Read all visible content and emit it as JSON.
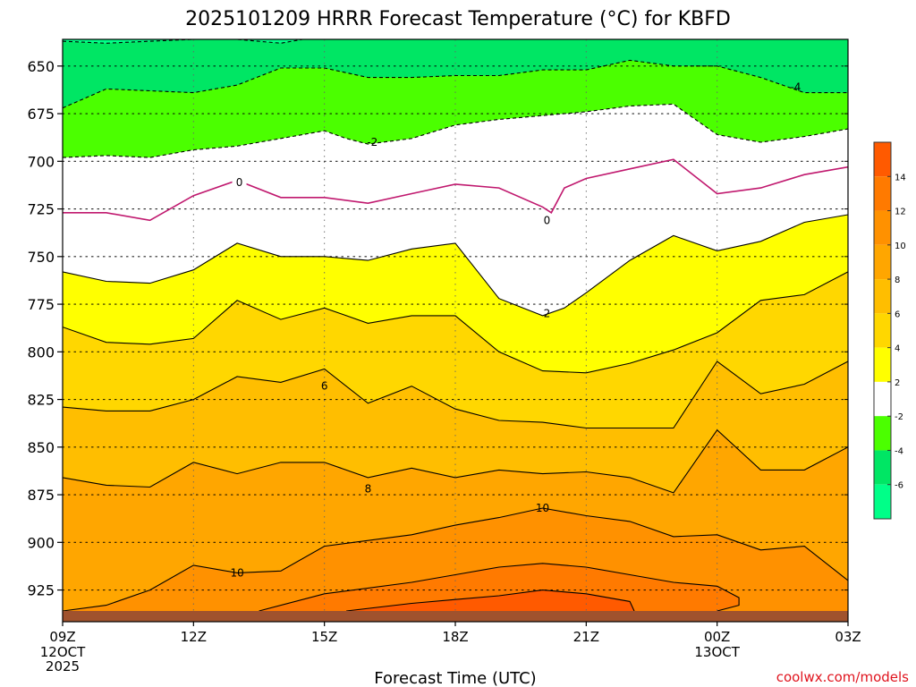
{
  "chart_data": {
    "type": "heatmap",
    "title": "2025101209 HRRR Forecast Temperature (°C) for KBFD",
    "xlabel": "Forecast Time (UTC)",
    "credit": "coolwx.com/models",
    "x_ticks": [
      "09Z",
      "12Z",
      "15Z",
      "18Z",
      "21Z",
      "00Z",
      "03Z"
    ],
    "x_tick_values": [
      0,
      3,
      6,
      9,
      12,
      15,
      18
    ],
    "x_date_labels": [
      {
        "at": 0,
        "lines": [
          "12OCT",
          "2025"
        ]
      },
      {
        "at": 15,
        "lines": [
          "13OCT"
        ]
      }
    ],
    "y_ticks": [
      650,
      675,
      700,
      725,
      750,
      775,
      800,
      825,
      850,
      875,
      900,
      925
    ],
    "ylim": [
      936,
      636
    ],
    "xlim": [
      0,
      18
    ],
    "y_unit": "hPa",
    "surface_pressure": 936,
    "grid": true,
    "colorbar": {
      "position": "right",
      "labels": [
        "14",
        "12",
        "10",
        "8",
        "6",
        "4",
        "2",
        "-2",
        "-4",
        "-6"
      ],
      "bands": [
        {
          "range": "14 to 16",
          "color": "#ff5a00"
        },
        {
          "range": "12 to 14",
          "color": "#ff7a00"
        },
        {
          "range": "10 to 12",
          "color": "#ff9100"
        },
        {
          "range": "8 to 10",
          "color": "#ffa600"
        },
        {
          "range": "6 to 8",
          "color": "#ffbe00"
        },
        {
          "range": "4 to 6",
          "color": "#ffd700"
        },
        {
          "range": "2 to 4",
          "color": "#ffff00"
        },
        {
          "range": "-2 to 2",
          "color": "#ffffff"
        },
        {
          "range": "-4 to -2",
          "color": "#4bff00"
        },
        {
          "range": "-6 to -4",
          "color": "#00e664"
        },
        {
          "range": "-8 to -6",
          "color": "#00ff88"
        }
      ]
    },
    "surface_color": "#a0522d",
    "isotherms": [
      {
        "level": -6,
        "color": "#000000",
        "dashed": true,
        "points": [
          [
            0,
            637
          ],
          [
            1,
            638
          ],
          [
            2,
            637
          ],
          [
            3,
            636
          ],
          [
            4,
            636
          ],
          [
            5,
            638
          ],
          [
            5.5,
            636
          ],
          [
            7,
            636
          ],
          [
            10,
            636
          ],
          [
            13,
            636
          ],
          [
            15,
            636
          ],
          [
            17,
            636
          ],
          [
            18,
            636
          ]
        ]
      },
      {
        "level": -4,
        "color": "#000000",
        "dashed": true,
        "label": {
          "text": "-4",
          "at": [
            16.8,
            661
          ]
        },
        "points": [
          [
            0,
            672
          ],
          [
            1,
            662
          ],
          [
            2,
            663
          ],
          [
            3,
            664
          ],
          [
            4,
            660
          ],
          [
            5,
            651
          ],
          [
            6,
            651
          ],
          [
            7,
            656
          ],
          [
            8,
            656
          ],
          [
            9,
            655
          ],
          [
            10,
            655
          ],
          [
            11,
            652
          ],
          [
            12,
            652
          ],
          [
            13,
            647
          ],
          [
            14,
            650
          ],
          [
            15,
            650
          ],
          [
            16,
            656
          ],
          [
            17,
            664
          ],
          [
            18,
            664
          ]
        ]
      },
      {
        "level": -2,
        "color": "#000000",
        "dashed": true,
        "label": {
          "text": "-2",
          "at": [
            7.1,
            690
          ]
        },
        "points": [
          [
            0,
            698
          ],
          [
            1,
            697
          ],
          [
            2,
            698
          ],
          [
            3,
            694
          ],
          [
            4,
            692
          ],
          [
            5,
            688
          ],
          [
            6,
            684
          ],
          [
            6.5,
            688
          ],
          [
            7,
            691
          ],
          [
            8,
            688
          ],
          [
            9,
            681
          ],
          [
            10,
            678
          ],
          [
            11,
            676
          ],
          [
            12,
            674
          ],
          [
            13,
            671
          ],
          [
            14,
            670
          ],
          [
            15,
            686
          ],
          [
            16,
            690
          ],
          [
            17,
            687
          ],
          [
            18,
            683
          ]
        ]
      },
      {
        "level": 0,
        "color": "#c0186e",
        "dashed": false,
        "label": {
          "text": "0",
          "at": [
            4.05,
            711
          ]
        },
        "points": [
          [
            0,
            727
          ],
          [
            1,
            727
          ],
          [
            2,
            731
          ],
          [
            3,
            718
          ],
          [
            4,
            710
          ],
          [
            5,
            719
          ],
          [
            6,
            719
          ],
          [
            7,
            722
          ],
          [
            8,
            717
          ],
          [
            9,
            712
          ],
          [
            10,
            714
          ],
          [
            11,
            724
          ],
          [
            11.2,
            727
          ],
          [
            11.5,
            714
          ],
          [
            12,
            709
          ],
          [
            13,
            704
          ],
          [
            14,
            699
          ],
          [
            15,
            717
          ],
          [
            16,
            714
          ],
          [
            17,
            707
          ],
          [
            18,
            703
          ]
        ],
        "label2": {
          "text": "0",
          "at": [
            11.1,
            731
          ]
        }
      },
      {
        "level": 2,
        "color": "#000000",
        "dashed": false,
        "label": {
          "text": "2",
          "at": [
            11.1,
            780
          ]
        },
        "points": [
          [
            0,
            758
          ],
          [
            1,
            763
          ],
          [
            2,
            764
          ],
          [
            3,
            757
          ],
          [
            4,
            743
          ],
          [
            5,
            750
          ],
          [
            6,
            750
          ],
          [
            7,
            752
          ],
          [
            8,
            746
          ],
          [
            9,
            743
          ],
          [
            10,
            772
          ],
          [
            11,
            781
          ],
          [
            11.5,
            777
          ],
          [
            12,
            769
          ],
          [
            13,
            752
          ],
          [
            14,
            739
          ],
          [
            15,
            747
          ],
          [
            16,
            742
          ],
          [
            17,
            732
          ],
          [
            18,
            728
          ]
        ]
      },
      {
        "level": 4,
        "color": "#000000",
        "dashed": false,
        "points": [
          [
            0,
            787
          ],
          [
            1,
            795
          ],
          [
            2,
            796
          ],
          [
            3,
            793
          ],
          [
            4,
            773
          ],
          [
            5,
            783
          ],
          [
            6,
            777
          ],
          [
            7,
            785
          ],
          [
            8,
            781
          ],
          [
            9,
            781
          ],
          [
            10,
            800
          ],
          [
            11,
            810
          ],
          [
            12,
            811
          ],
          [
            13,
            806
          ],
          [
            14,
            799
          ],
          [
            15,
            790
          ],
          [
            16,
            773
          ],
          [
            17,
            770
          ],
          [
            18,
            758
          ]
        ]
      },
      {
        "level": 6,
        "color": "#000000",
        "dashed": false,
        "label": {
          "text": "6",
          "at": [
            6.0,
            818
          ]
        },
        "points": [
          [
            0,
            829
          ],
          [
            1,
            831
          ],
          [
            2,
            831
          ],
          [
            3,
            825
          ],
          [
            4,
            813
          ],
          [
            5,
            816
          ],
          [
            6,
            809
          ],
          [
            7,
            827
          ],
          [
            8,
            818
          ],
          [
            9,
            830
          ],
          [
            10,
            836
          ],
          [
            11,
            837
          ],
          [
            12,
            840
          ],
          [
            13,
            840
          ],
          [
            14,
            840
          ],
          [
            15,
            805
          ],
          [
            16,
            822
          ],
          [
            17,
            817
          ],
          [
            18,
            805
          ]
        ]
      },
      {
        "level": 8,
        "color": "#000000",
        "dashed": false,
        "label": {
          "text": "8",
          "at": [
            7.0,
            872
          ]
        },
        "points": [
          [
            0,
            866
          ],
          [
            1,
            870
          ],
          [
            2,
            871
          ],
          [
            3,
            858
          ],
          [
            4,
            864
          ],
          [
            5,
            858
          ],
          [
            6,
            858
          ],
          [
            7,
            866
          ],
          [
            8,
            861
          ],
          [
            9,
            866
          ],
          [
            10,
            862
          ],
          [
            11,
            864
          ],
          [
            12,
            863
          ],
          [
            13,
            866
          ],
          [
            14,
            874
          ],
          [
            15,
            841
          ],
          [
            16,
            862
          ],
          [
            17,
            862
          ],
          [
            18,
            850
          ]
        ]
      },
      {
        "level": 10,
        "color": "#000000",
        "dashed": false,
        "label": {
          "text": "10",
          "at": [
            4.0,
            916
          ]
        },
        "points": [
          [
            0,
            936
          ],
          [
            1,
            933
          ],
          [
            2,
            925
          ],
          [
            3,
            912
          ],
          [
            4,
            916
          ],
          [
            5,
            915
          ],
          [
            6,
            902
          ],
          [
            8,
            896
          ],
          [
            9,
            891
          ],
          [
            10,
            887
          ],
          [
            11,
            882
          ],
          [
            12,
            886
          ],
          [
            13,
            889
          ],
          [
            14,
            897
          ],
          [
            15,
            896
          ],
          [
            16,
            904
          ],
          [
            17,
            902
          ],
          [
            18,
            920
          ]
        ],
        "label2": {
          "text": "10",
          "at": [
            11.0,
            882
          ]
        }
      },
      {
        "level": 12,
        "color": "#000000",
        "dashed": false,
        "points": [
          [
            4.5,
            936
          ],
          [
            6,
            927
          ],
          [
            8,
            921
          ],
          [
            9,
            917
          ],
          [
            10,
            913
          ],
          [
            11,
            911
          ],
          [
            12,
            913
          ],
          [
            13,
            917
          ],
          [
            14,
            921
          ],
          [
            15,
            923
          ],
          [
            15.5,
            929
          ],
          [
            15.5,
            933
          ],
          [
            15,
            936
          ]
        ]
      },
      {
        "level": 14,
        "color": "#000000",
        "dashed": false,
        "points": [
          [
            6.5,
            936
          ],
          [
            8,
            932
          ],
          [
            9,
            930
          ],
          [
            10,
            928
          ],
          [
            11,
            925
          ],
          [
            12,
            927
          ],
          [
            13,
            931
          ],
          [
            13.1,
            936
          ]
        ]
      }
    ]
  }
}
